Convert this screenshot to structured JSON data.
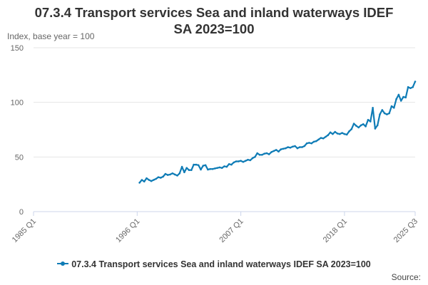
{
  "header": {
    "title_line1": "07.3.4 Transport services Sea and inland waterways IDEF",
    "title_line2": "SA 2023=100",
    "unit_label": "Index, base year = 100"
  },
  "footer": {
    "source_label": "Source:"
  },
  "colors": {
    "series": "#0f7cb6",
    "grid": "#e6e6e6",
    "axis": "#ccd6eb",
    "tick_text": "#666666"
  },
  "chart_data": {
    "type": "line",
    "title": "07.3.4 Transport services Sea and inland waterways IDEF SA 2023=100",
    "ylabel": "Index, base year = 100",
    "xlabel": "",
    "x_start": "1985 Q1",
    "x_end": "2025 Q3",
    "ylim": [
      0,
      150
    ],
    "yticks": [
      0,
      50,
      100,
      150
    ],
    "xticks": [
      "1985 Q1",
      "1996 Q1",
      "2007 Q1",
      "2018 Q1",
      "2025 Q3"
    ],
    "grid": true,
    "legend_position": "bottom",
    "series": [
      {
        "name": "07.3.4 Transport services Sea and inland waterways IDEF SA 2023=100",
        "points": [
          [
            "1996 Q2",
            26.5
          ],
          [
            "1996 Q3",
            29
          ],
          [
            "1996 Q4",
            27.5
          ],
          [
            "1997 Q1",
            30.5
          ],
          [
            "1997 Q2",
            29
          ],
          [
            "1997 Q3",
            28
          ],
          [
            "1997 Q4",
            29
          ],
          [
            "1998 Q1",
            30
          ],
          [
            "1998 Q2",
            31.5
          ],
          [
            "1998 Q3",
            31
          ],
          [
            "1998 Q4",
            32
          ],
          [
            "1999 Q1",
            34.5
          ],
          [
            "1999 Q2",
            33.5
          ],
          [
            "1999 Q3",
            34
          ],
          [
            "1999 Q4",
            35
          ],
          [
            "2000 Q1",
            34
          ],
          [
            "2000 Q2",
            33
          ],
          [
            "2000 Q3",
            35
          ],
          [
            "2000 Q4",
            41
          ],
          [
            "2001 Q1",
            36
          ],
          [
            "2001 Q2",
            40
          ],
          [
            "2001 Q3",
            38
          ],
          [
            "2001 Q4",
            38
          ],
          [
            "2002 Q1",
            43
          ],
          [
            "2002 Q2",
            43
          ],
          [
            "2002 Q3",
            42.5
          ],
          [
            "2002 Q4",
            38.5
          ],
          [
            "2003 Q1",
            42
          ],
          [
            "2003 Q2",
            42.5
          ],
          [
            "2003 Q3",
            38.5
          ],
          [
            "2003 Q4",
            39
          ],
          [
            "2004 Q1",
            39
          ],
          [
            "2004 Q2",
            39.5
          ],
          [
            "2004 Q3",
            40
          ],
          [
            "2004 Q4",
            40.5
          ],
          [
            "2005 Q1",
            40
          ],
          [
            "2005 Q2",
            41.5
          ],
          [
            "2005 Q3",
            41
          ],
          [
            "2005 Q4",
            43.5
          ],
          [
            "2006 Q1",
            43
          ],
          [
            "2006 Q2",
            45
          ],
          [
            "2006 Q3",
            46
          ],
          [
            "2006 Q4",
            46
          ],
          [
            "2007 Q1",
            46.5
          ],
          [
            "2007 Q2",
            45.5
          ],
          [
            "2007 Q3",
            46.5
          ],
          [
            "2007 Q4",
            47.5
          ],
          [
            "2008 Q1",
            47
          ],
          [
            "2008 Q2",
            49
          ],
          [
            "2008 Q3",
            50
          ],
          [
            "2008 Q4",
            53.5
          ],
          [
            "2009 Q1",
            52
          ],
          [
            "2009 Q2",
            52
          ],
          [
            "2009 Q3",
            53
          ],
          [
            "2009 Q4",
            53.5
          ],
          [
            "2010 Q1",
            52.5
          ],
          [
            "2010 Q2",
            54.5
          ],
          [
            "2010 Q3",
            55.5
          ],
          [
            "2010 Q4",
            56.5
          ],
          [
            "2011 Q1",
            55
          ],
          [
            "2011 Q2",
            57
          ],
          [
            "2011 Q3",
            57.5
          ],
          [
            "2011 Q4",
            58
          ],
          [
            "2012 Q1",
            59
          ],
          [
            "2012 Q2",
            58.5
          ],
          [
            "2012 Q3",
            59.5
          ],
          [
            "2012 Q4",
            60
          ],
          [
            "2013 Q1",
            58
          ],
          [
            "2013 Q2",
            59
          ],
          [
            "2013 Q3",
            59
          ],
          [
            "2013 Q4",
            60
          ],
          [
            "2014 Q1",
            62.5
          ],
          [
            "2014 Q2",
            63
          ],
          [
            "2014 Q3",
            62.5
          ],
          [
            "2014 Q4",
            64
          ],
          [
            "2015 Q1",
            64.5
          ],
          [
            "2015 Q2",
            66
          ],
          [
            "2015 Q3",
            67.5
          ],
          [
            "2015 Q4",
            67
          ],
          [
            "2016 Q1",
            68.5
          ],
          [
            "2016 Q2",
            70
          ],
          [
            "2016 Q3",
            72.5
          ],
          [
            "2016 Q4",
            71
          ],
          [
            "2017 Q1",
            73
          ],
          [
            "2017 Q2",
            71.5
          ],
          [
            "2017 Q3",
            71
          ],
          [
            "2017 Q4",
            72
          ],
          [
            "2018 Q1",
            71
          ],
          [
            "2018 Q2",
            70.5
          ],
          [
            "2018 Q3",
            73.5
          ],
          [
            "2018 Q4",
            75.5
          ],
          [
            "2019 Q1",
            80.5
          ],
          [
            "2019 Q2",
            78.5
          ],
          [
            "2019 Q3",
            77
          ],
          [
            "2019 Q4",
            79
          ],
          [
            "2020 Q1",
            80
          ],
          [
            "2020 Q2",
            78
          ],
          [
            "2020 Q3",
            84
          ],
          [
            "2020 Q4",
            82.5
          ],
          [
            "2021 Q1",
            95
          ],
          [
            "2021 Q2",
            76
          ],
          [
            "2021 Q3",
            79
          ],
          [
            "2021 Q4",
            89
          ],
          [
            "2022 Q1",
            93
          ],
          [
            "2022 Q2",
            90
          ],
          [
            "2022 Q3",
            89
          ],
          [
            "2022 Q4",
            90
          ],
          [
            "2023 Q1",
            96.5
          ],
          [
            "2023 Q2",
            95
          ],
          [
            "2023 Q3",
            103
          ],
          [
            "2023 Q4",
            107
          ],
          [
            "2024 Q1",
            101.5
          ],
          [
            "2024 Q2",
            105
          ],
          [
            "2024 Q3",
            104.5
          ],
          [
            "2024 Q4",
            114
          ],
          [
            "2025 Q1",
            113
          ],
          [
            "2025 Q2",
            114
          ],
          [
            "2025 Q3",
            119
          ]
        ]
      }
    ]
  },
  "legend": {
    "label": "07.3.4 Transport services Sea and inland waterways IDEF SA 2023=100"
  }
}
